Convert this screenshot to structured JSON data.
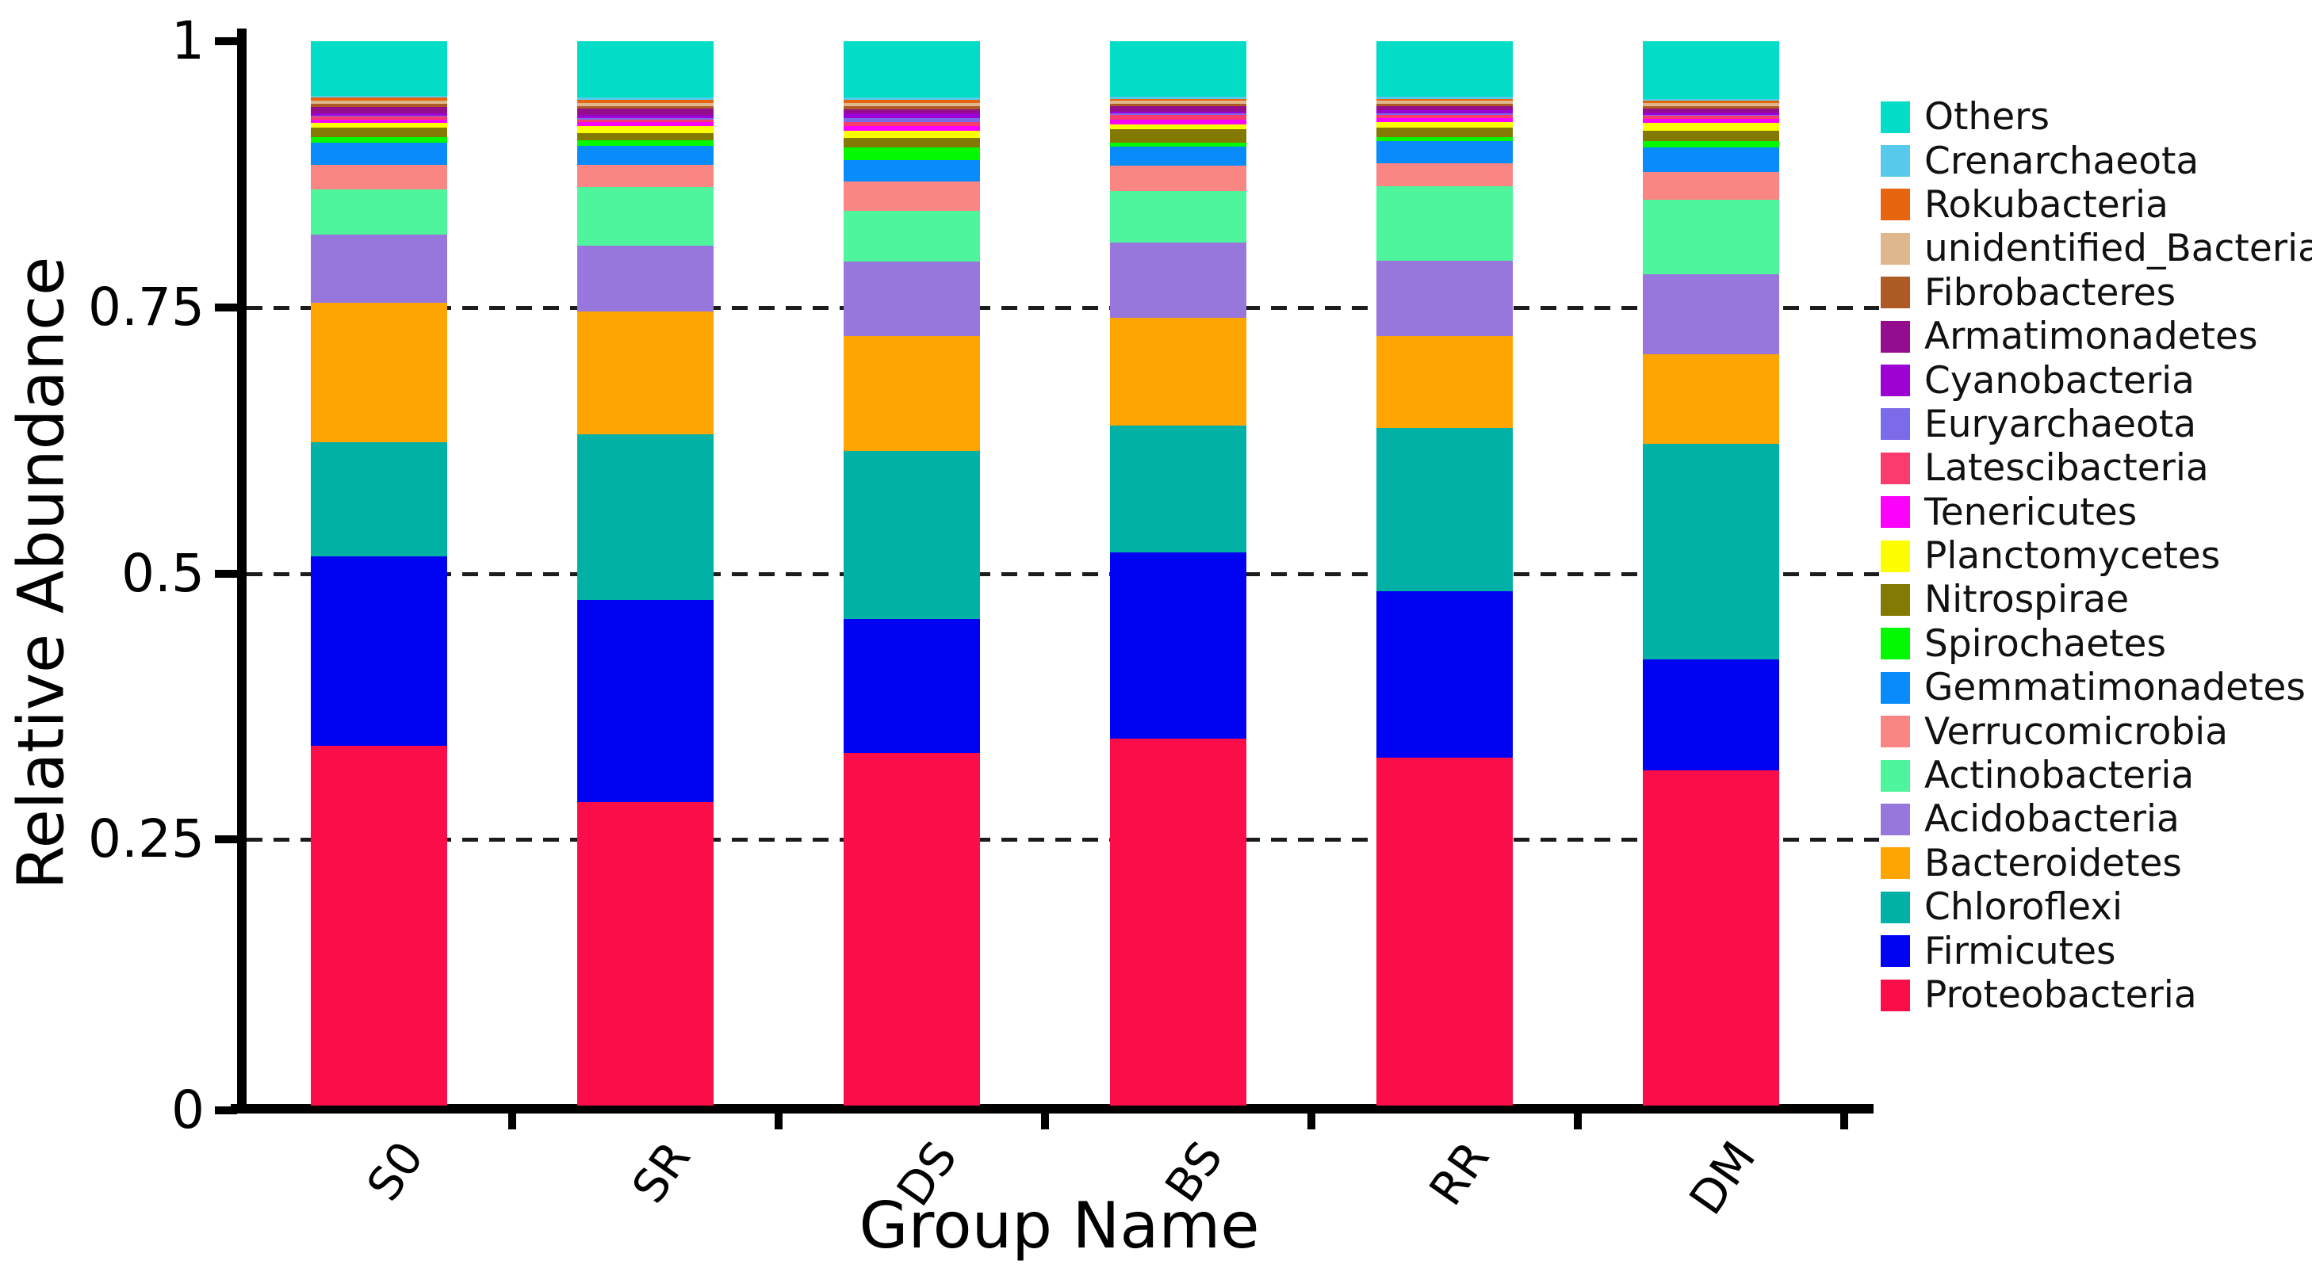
{
  "y_axis": {
    "label": "Relative Abundance",
    "tick_labels": [
      "1",
      "0.75",
      "0.5",
      "0.25",
      "0"
    ],
    "tick_values": [
      1,
      0.75,
      0.5,
      0.25,
      0
    ],
    "gridline_values": [
      0.75,
      0.5,
      0.25
    ]
  },
  "x_axis": {
    "label": "Group Name",
    "categories": [
      "S0",
      "SR",
      "DS",
      "BS",
      "RR",
      "DM"
    ]
  },
  "chart_data": {
    "type": "bar",
    "stacked": true,
    "title": "",
    "xlabel": "Group Name",
    "ylabel": "Relative Abundance",
    "ylim": [
      0,
      1
    ],
    "grid": "horizontal dashed at 0.25, 0.5, 0.75 behind bars",
    "legend_position": "right-outside",
    "categories": [
      "S0",
      "SR",
      "DS",
      "BS",
      "RR",
      "DM"
    ],
    "series": [
      {
        "name": "Others",
        "color": "#03DCC6",
        "values": [
          0.051,
          0.053,
          0.053,
          0.052,
          0.052,
          0.054
        ]
      },
      {
        "name": "Crenarchaeota",
        "color": "#57C9EA",
        "values": [
          0.002,
          0.002,
          0.002,
          0.002,
          0.002,
          0.002
        ]
      },
      {
        "name": "Rokubacteria",
        "color": "#E8650F",
        "values": [
          0.003,
          0.003,
          0.003,
          0.002,
          0.002,
          0.002
        ]
      },
      {
        "name": "unidentified_Bacteria",
        "color": "#DFB78C",
        "values": [
          0.003,
          0.003,
          0.003,
          0.003,
          0.003,
          0.003
        ]
      },
      {
        "name": "Fibrobacteres",
        "color": "#AE5A24",
        "values": [
          0.003,
          0.002,
          0.003,
          0.002,
          0.002,
          0.002
        ]
      },
      {
        "name": "Armatimonadetes",
        "color": "#950D8F",
        "values": [
          0.006,
          0.006,
          0.004,
          0.005,
          0.004,
          0.004
        ]
      },
      {
        "name": "Cyanobacteria",
        "color": "#9B02D3",
        "values": [
          0.002,
          0.003,
          0.004,
          0.002,
          0.003,
          0.002
        ]
      },
      {
        "name": "Euryarchaeota",
        "color": "#7B6BE8",
        "values": [
          0.001,
          0.002,
          0.004,
          0.001,
          0.001,
          0.001
        ]
      },
      {
        "name": "Latescibacteria",
        "color": "#FB3A6E",
        "values": [
          0.003,
          0.002,
          0.004,
          0.005,
          0.003,
          0.003
        ]
      },
      {
        "name": "Tenericutes",
        "color": "#FB02FB",
        "values": [
          0.003,
          0.004,
          0.004,
          0.004,
          0.004,
          0.004
        ]
      },
      {
        "name": "Planctomycetes",
        "color": "#FEFE02",
        "values": [
          0.004,
          0.006,
          0.007,
          0.005,
          0.005,
          0.007
        ]
      },
      {
        "name": "Nitrospirae",
        "color": "#827A02",
        "values": [
          0.009,
          0.007,
          0.009,
          0.012,
          0.009,
          0.01
        ]
      },
      {
        "name": "Spirochaetes",
        "color": "#02F902",
        "values": [
          0.005,
          0.005,
          0.012,
          0.004,
          0.004,
          0.006
        ]
      },
      {
        "name": "Gemmatimonadetes",
        "color": "#0A8BFB",
        "values": [
          0.021,
          0.018,
          0.02,
          0.018,
          0.021,
          0.023
        ]
      },
      {
        "name": "Verrucomicrobia",
        "color": "#FA8684",
        "values": [
          0.023,
          0.021,
          0.027,
          0.024,
          0.021,
          0.026
        ]
      },
      {
        "name": "Actinobacteria",
        "color": "#4FF59D",
        "values": [
          0.043,
          0.055,
          0.048,
          0.048,
          0.07,
          0.07
        ]
      },
      {
        "name": "Acidobacteria",
        "color": "#9777DC",
        "values": [
          0.064,
          0.062,
          0.07,
          0.071,
          0.071,
          0.075
        ]
      },
      {
        "name": "Bacteroidetes",
        "color": "#FEA502",
        "values": [
          0.131,
          0.115,
          0.108,
          0.101,
          0.086,
          0.084
        ]
      },
      {
        "name": "Chloroflexi",
        "color": "#02B1A6",
        "values": [
          0.107,
          0.156,
          0.158,
          0.119,
          0.154,
          0.203
        ]
      },
      {
        "name": "Firmicutes",
        "color": "#0202F2",
        "values": [
          0.178,
          0.19,
          0.126,
          0.175,
          0.156,
          0.104
        ]
      },
      {
        "name": "Proteobacteria",
        "color": "#FB0D49",
        "values": [
          0.338,
          0.285,
          0.331,
          0.345,
          0.327,
          0.315
        ]
      }
    ]
  }
}
